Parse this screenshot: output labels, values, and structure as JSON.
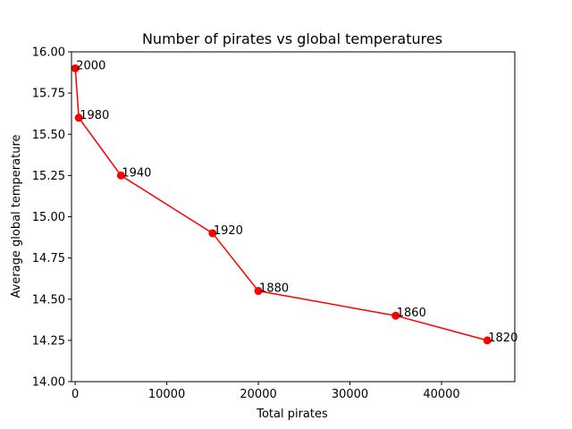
{
  "chart_data": {
    "type": "line",
    "title": "Number of pirates vs global temperatures",
    "xlabel": "Total pirates",
    "ylabel": "Average global temperature",
    "xlim": [
      -400,
      48000
    ],
    "ylim": [
      14.0,
      16.0
    ],
    "xticks": [
      0,
      10000,
      20000,
      30000,
      40000
    ],
    "xtick_labels": [
      "0",
      "10000",
      "20000",
      "30000",
      "40000"
    ],
    "yticks": [
      14.0,
      14.25,
      14.5,
      14.75,
      15.0,
      15.25,
      15.5,
      15.75,
      16.0
    ],
    "ytick_labels": [
      "14.00",
      "14.25",
      "14.50",
      "14.75",
      "15.00",
      "15.25",
      "15.50",
      "15.75",
      "16.00"
    ],
    "grid": false,
    "color": "#ff0000",
    "points": [
      {
        "x": 45000,
        "y": 14.25,
        "label": "1820"
      },
      {
        "x": 35000,
        "y": 14.4,
        "label": "1860"
      },
      {
        "x": 20000,
        "y": 14.55,
        "label": "1880"
      },
      {
        "x": 15000,
        "y": 14.9,
        "label": "1920"
      },
      {
        "x": 5000,
        "y": 15.25,
        "label": "1940"
      },
      {
        "x": 400,
        "y": 15.6,
        "label": "1980"
      },
      {
        "x": 17,
        "y": 15.9,
        "label": "2000"
      }
    ]
  }
}
